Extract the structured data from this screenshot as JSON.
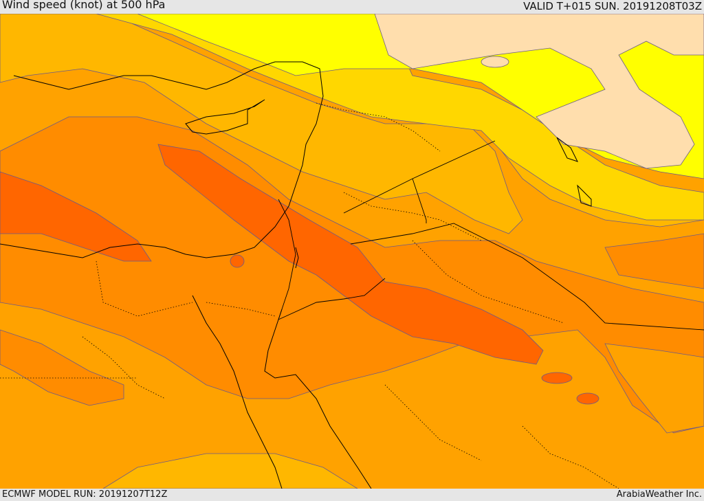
{
  "header": {
    "title": "Wind speed (knot) at 500 hPa",
    "valid": "VALID T+015 SUN. 20191208T03Z"
  },
  "footer": {
    "model_run": "ECMWF MODEL RUN: 20191207T12Z",
    "credit": "ArabiaWeather Inc."
  },
  "colors": {
    "band_palest": "#ffdead",
    "band_yellow": "#ffff00",
    "band_gold": "#ffd700",
    "band_amber": "#ffb700",
    "band_orange": "#ffa200",
    "band_dark_orange": "#ff8c00",
    "band_red_orange": "#ff6600",
    "contour_line": "#6a5a8a",
    "coastline": "#000000"
  }
}
